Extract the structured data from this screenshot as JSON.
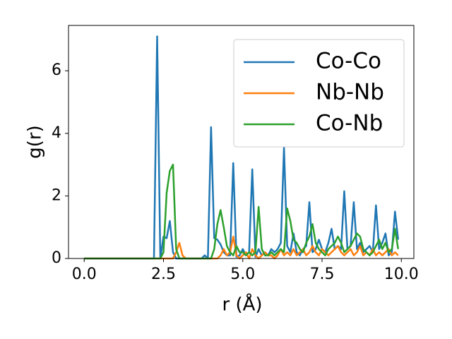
{
  "chart_data": {
    "type": "line",
    "xlabel": "r (Å)",
    "ylabel": "g(r)",
    "x": [
      0.0,
      0.1,
      0.2,
      0.3,
      0.4,
      0.5,
      0.6,
      0.7,
      0.8,
      0.9,
      1.0,
      1.1,
      1.2,
      1.3,
      1.4,
      1.5,
      1.6,
      1.7,
      1.8,
      1.9,
      2.0,
      2.1,
      2.2,
      2.3,
      2.4,
      2.5,
      2.6,
      2.7,
      2.8,
      2.9,
      3.0,
      3.1,
      3.2,
      3.3,
      3.4,
      3.5,
      3.6,
      3.7,
      3.8,
      3.9,
      4.0,
      4.1,
      4.2,
      4.3,
      4.4,
      4.5,
      4.6,
      4.7,
      4.8,
      4.9,
      5.0,
      5.1,
      5.2,
      5.3,
      5.4,
      5.5,
      5.6,
      5.7,
      5.8,
      5.9,
      6.0,
      6.1,
      6.2,
      6.3,
      6.4,
      6.5,
      6.6,
      6.7,
      6.8,
      6.9,
      7.0,
      7.1,
      7.2,
      7.3,
      7.4,
      7.5,
      7.6,
      7.7,
      7.8,
      7.9,
      8.0,
      8.1,
      8.2,
      8.3,
      8.4,
      8.5,
      8.6,
      8.7,
      8.8,
      8.9,
      9.0,
      9.1,
      9.2,
      9.3,
      9.4,
      9.5,
      9.6,
      9.7,
      9.8,
      9.9
    ],
    "series": [
      {
        "name": "Co-Co",
        "color": "#1f77b4",
        "values": [
          0,
          0,
          0,
          0,
          0,
          0,
          0,
          0,
          0,
          0,
          0,
          0,
          0,
          0,
          0,
          0,
          0,
          0,
          0,
          0,
          0,
          0,
          0,
          7.1,
          0,
          0.7,
          0.65,
          1.2,
          0.2,
          0,
          0,
          0,
          0,
          0,
          0,
          0,
          0,
          0,
          0.1,
          0,
          4.2,
          0.65,
          0.6,
          0.45,
          0.2,
          0.1,
          0.1,
          3.05,
          0.05,
          0.1,
          0.3,
          0.1,
          0.2,
          2.85,
          0.05,
          0.3,
          0.1,
          0.2,
          0.1,
          0.3,
          0.2,
          0.3,
          0.5,
          3.55,
          0.4,
          0.2,
          0.8,
          0.2,
          0.1,
          0.3,
          0.4,
          1.8,
          0.2,
          0.3,
          0.6,
          0.3,
          0.2,
          0.5,
          0.95,
          0.3,
          0.4,
          0.3,
          2.15,
          0.3,
          0.4,
          1.8,
          0.3,
          0.5,
          0.2,
          0.3,
          0.4,
          0.2,
          1.7,
          0.3,
          0.5,
          0.8,
          0.1,
          0.2,
          1.5,
          0.6
        ]
      },
      {
        "name": "Nb-Nb",
        "color": "#ff7f0e",
        "values": [
          0,
          0,
          0,
          0,
          0,
          0,
          0,
          0,
          0,
          0,
          0,
          0,
          0,
          0,
          0,
          0,
          0,
          0,
          0,
          0,
          0,
          0,
          0,
          0,
          0,
          0,
          0,
          0,
          0,
          0.2,
          0.5,
          0.1,
          0,
          0,
          0,
          0,
          0,
          0,
          0,
          0,
          0,
          0,
          0,
          0.1,
          0.3,
          0.1,
          0.2,
          0.7,
          0.1,
          0,
          0.1,
          0.2,
          0,
          0.3,
          0.1,
          0,
          0.1,
          0.2,
          0.1,
          0.1,
          0,
          0.1,
          0.3,
          0.1,
          0.2,
          0.1,
          0.3,
          0.1,
          0.2,
          0.3,
          0.1,
          0.2,
          0.4,
          0.2,
          0.1,
          0.3,
          0.2,
          0.1,
          0.2,
          0.3,
          0.4,
          0.2,
          0.1,
          0.2,
          0.3,
          0.1,
          0.2,
          0.4,
          0.1,
          0.2,
          0.1,
          0.3,
          0.1,
          0.2,
          0.1,
          0.2,
          0.3,
          0.1,
          0.2,
          0.1
        ]
      },
      {
        "name": "Co-Nb",
        "color": "#2ca02c",
        "values": [
          0,
          0,
          0,
          0,
          0,
          0,
          0,
          0,
          0,
          0,
          0,
          0,
          0,
          0,
          0,
          0,
          0,
          0,
          0,
          0,
          0,
          0,
          0,
          0,
          0,
          0.2,
          2.1,
          2.8,
          3.0,
          0.3,
          0,
          0,
          0,
          0,
          0,
          0,
          0,
          0,
          0,
          0,
          0,
          0.3,
          1.1,
          1.55,
          1.0,
          0.4,
          0.2,
          0.1,
          0.4,
          0.2,
          0.2,
          0.1,
          0.2,
          0.1,
          0.2,
          1.65,
          0.3,
          0.1,
          0.1,
          0.2,
          0.1,
          0.2,
          0.3,
          0.2,
          1.6,
          1.2,
          0.6,
          0.5,
          0.3,
          0.2,
          0.5,
          0.7,
          1.1,
          0.5,
          0.3,
          0.2,
          0.1,
          0.3,
          0.4,
          0.5,
          0.7,
          0.5,
          0.2,
          0.3,
          0.4,
          0.6,
          0.8,
          0.7,
          0.3,
          0.2,
          0.1,
          0.2,
          0.4,
          0.6,
          0.3,
          0.5,
          0.2,
          0.3,
          0.95,
          0.3
        ]
      }
    ],
    "xlim": [
      -0.495,
      10.395
    ],
    "ylim": [
      0,
      7.45
    ],
    "xticks": [
      {
        "value": 0,
        "label": "0.0"
      },
      2.5,
      {
        "value": 5,
        "label": "5.0"
      },
      7.5,
      {
        "value": 10,
        "label": "10.0"
      }
    ],
    "yticks": [
      0,
      2,
      4,
      6
    ],
    "legend": "upper right"
  }
}
